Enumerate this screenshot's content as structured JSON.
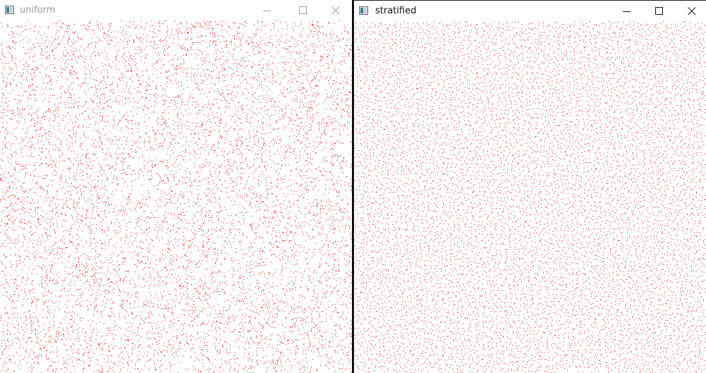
{
  "windows": [
    {
      "title": "uniform",
      "active": false,
      "sampling": "uniform",
      "point_count": 9000,
      "point_color": "#e00000"
    },
    {
      "title": "stratified",
      "active": true,
      "sampling": "stratified",
      "point_count": 9000,
      "point_color": "#e00000"
    }
  ],
  "controls": {
    "minimize_icon": "minimize-icon",
    "maximize_icon": "maximize-icon",
    "close_icon": "close-icon"
  },
  "colors": {
    "background": "#ffffff",
    "inactive_title": "#9a9a9a",
    "active_title": "#111111",
    "divider": "#0a0a0a"
  }
}
